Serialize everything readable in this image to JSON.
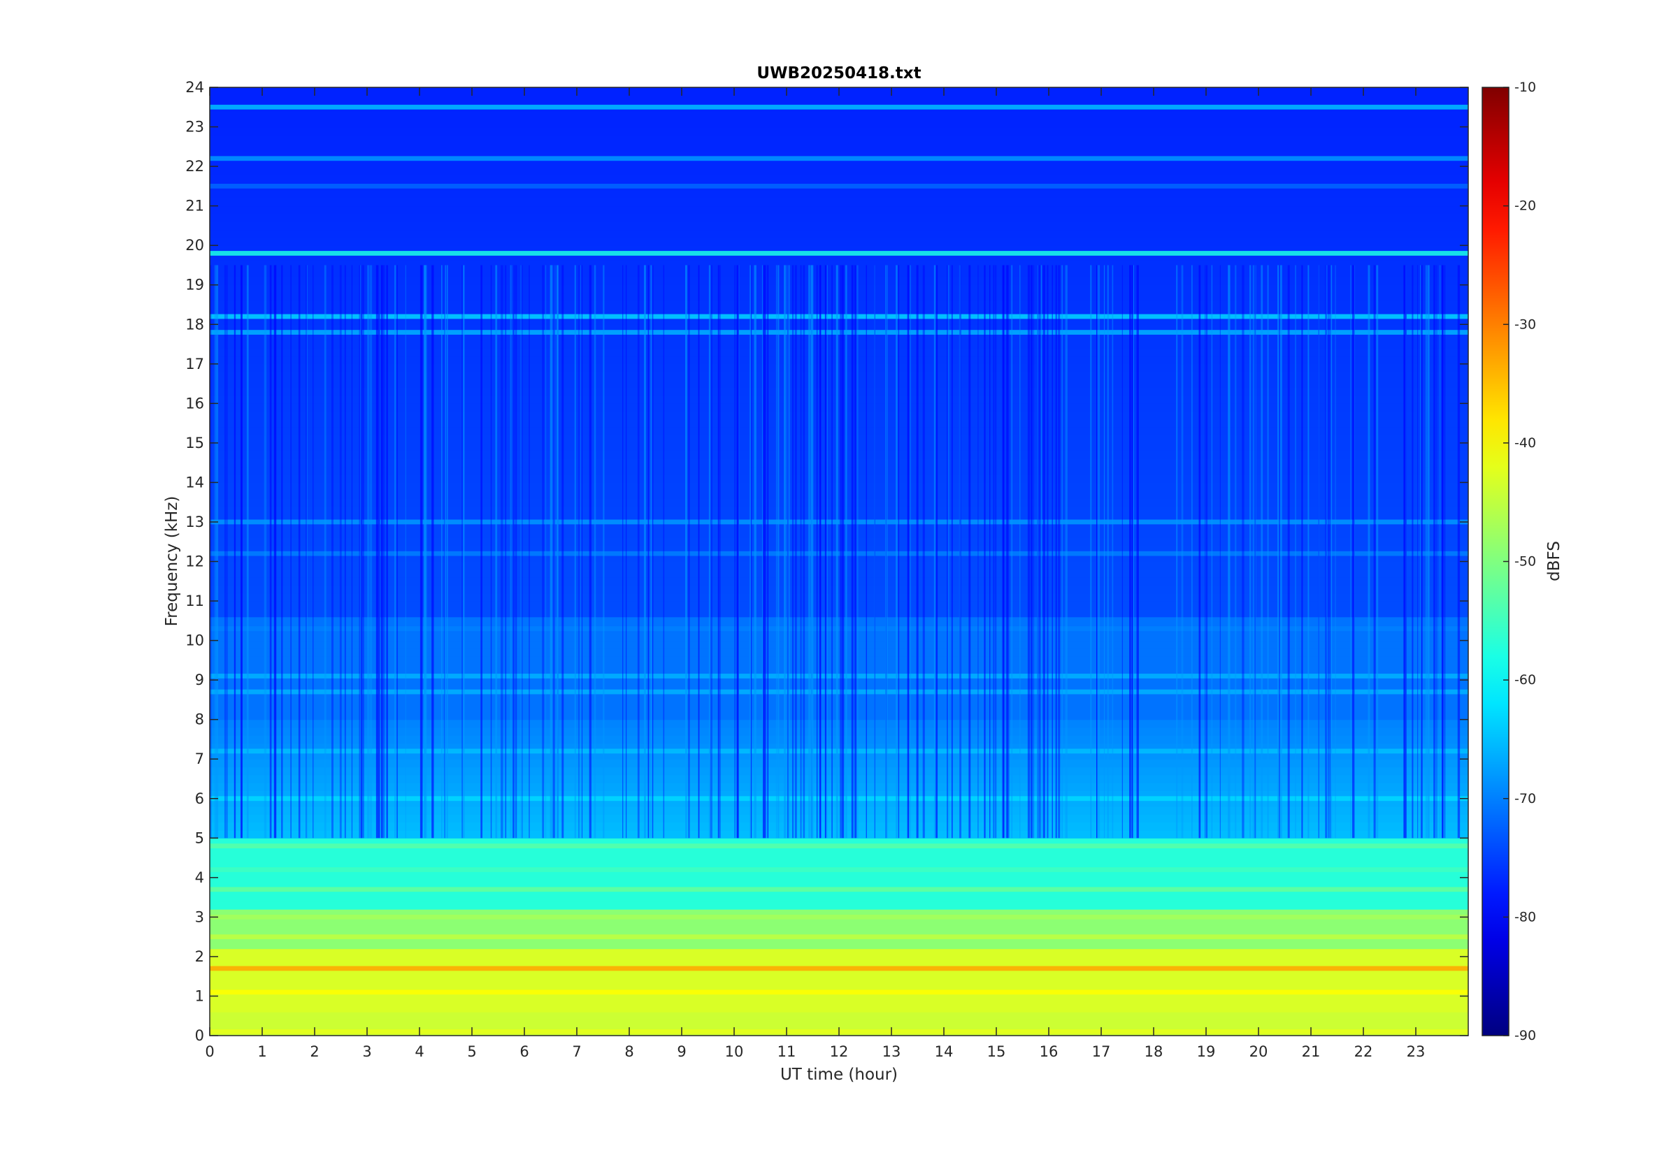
{
  "chart_data": {
    "type": "heatmap",
    "title": "UWB20250418.txt",
    "xlabel": "UT time (hour)",
    "ylabel": "Frequency (kHz)",
    "xlim": [
      0,
      24
    ],
    "ylim": [
      0,
      24
    ],
    "x_ticks": [
      0,
      1,
      2,
      3,
      4,
      5,
      6,
      7,
      8,
      9,
      10,
      11,
      12,
      13,
      14,
      15,
      16,
      17,
      18,
      19,
      20,
      21,
      22,
      23
    ],
    "y_ticks": [
      0,
      1,
      2,
      3,
      4,
      5,
      6,
      7,
      8,
      9,
      10,
      11,
      12,
      13,
      14,
      15,
      16,
      17,
      18,
      19,
      20,
      21,
      22,
      23,
      24
    ],
    "colorbar": {
      "label": "dBFS",
      "range": [
        -90,
        -10
      ],
      "ticks": [
        -90,
        -80,
        -70,
        -60,
        -50,
        -40,
        -30,
        -20,
        -10
      ],
      "colormap": "jet"
    },
    "grid": false,
    "bands": [
      {
        "freq_khz": 0.1,
        "db": -42
      },
      {
        "freq_khz": 1.1,
        "db": -40
      },
      {
        "freq_khz": 1.7,
        "db": -33
      },
      {
        "freq_khz": 2.5,
        "db": -45
      },
      {
        "freq_khz": 3.0,
        "db": -47
      },
      {
        "freq_khz": 3.7,
        "db": -52
      },
      {
        "freq_khz": 4.2,
        "db": -55
      },
      {
        "freq_khz": 4.8,
        "db": -53
      },
      {
        "freq_khz": 6.0,
        "db": -63
      },
      {
        "freq_khz": 7.2,
        "db": -65
      },
      {
        "freq_khz": 8.7,
        "db": -66
      },
      {
        "freq_khz": 9.1,
        "db": -66
      },
      {
        "freq_khz": 10.3,
        "db": -70
      },
      {
        "freq_khz": 12.2,
        "db": -70
      },
      {
        "freq_khz": 13.0,
        "db": -68
      },
      {
        "freq_khz": 17.8,
        "db": -66
      },
      {
        "freq_khz": 18.2,
        "db": -63
      },
      {
        "freq_khz": 19.8,
        "db": -58
      },
      {
        "freq_khz": 21.5,
        "db": -72
      },
      {
        "freq_khz": 22.2,
        "db": -68
      },
      {
        "freq_khz": 23.5,
        "db": -65
      }
    ]
  }
}
